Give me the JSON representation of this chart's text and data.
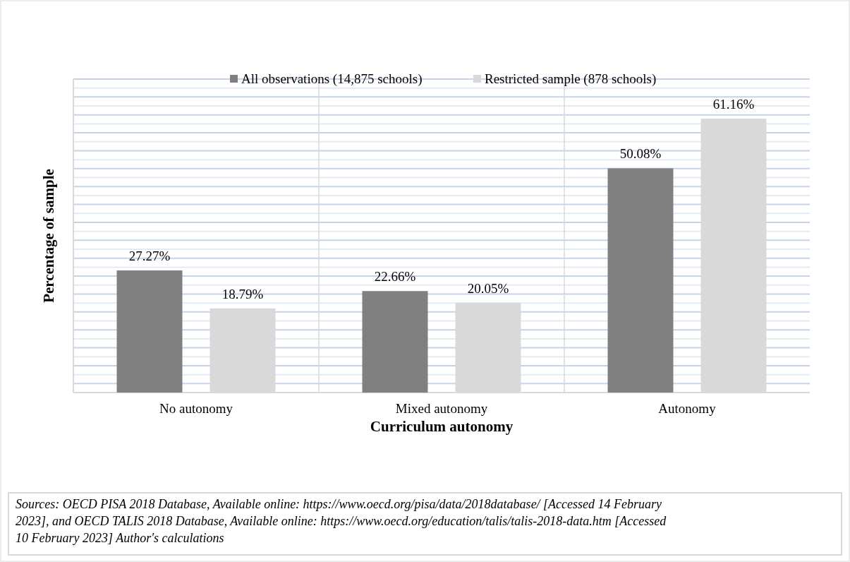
{
  "chart_data": {
    "type": "bar",
    "xlabel": "Curriculum autonomy",
    "ylabel": "Percentage of sample",
    "categories": [
      "No autonomy",
      "Mixed autonomy",
      "Autonomy"
    ],
    "series": [
      {
        "name": "All observations (14,875 schools)",
        "color": "#808080",
        "values": [
          27.27,
          22.66,
          50.08
        ],
        "value_labels": [
          "27.27%",
          "22.66%",
          "50.08%"
        ]
      },
      {
        "name": "Restricted sample (878 schools)",
        "color": "#d9d9d9",
        "values": [
          18.79,
          20.05,
          61.16
        ],
        "value_labels": [
          "18.79%",
          "20.05%",
          "61.16%"
        ]
      }
    ],
    "ylim": [
      0,
      70
    ],
    "yticks": [
      {
        "value": 0,
        "label": null
      },
      {
        "value": 2,
        "label": null
      },
      {
        "value": 4,
        "label": null
      },
      {
        "value": 6,
        "label": null
      },
      {
        "value": 8,
        "label": null
      },
      {
        "value": 10,
        "label": null
      },
      {
        "value": 12,
        "label": null
      },
      {
        "value": 14,
        "label": null
      },
      {
        "value": 16,
        "label": null
      },
      {
        "value": 18,
        "label": null
      },
      {
        "value": 20,
        "label": null
      },
      {
        "value": 22,
        "label": null
      },
      {
        "value": 24,
        "label": null
      },
      {
        "value": 26,
        "label": null
      },
      {
        "value": 28,
        "label": null
      },
      {
        "value": 30,
        "label": null
      },
      {
        "value": 32,
        "label": null
      },
      {
        "value": 34,
        "label": null
      },
      {
        "value": 36,
        "label": null
      },
      {
        "value": 38,
        "label": null
      },
      {
        "value": 40,
        "label": null
      },
      {
        "value": 42,
        "label": null
      },
      {
        "value": 44,
        "label": null
      },
      {
        "value": 46,
        "label": null
      },
      {
        "value": 48,
        "label": null
      },
      {
        "value": 50,
        "label": null
      },
      {
        "value": 52,
        "label": null
      },
      {
        "value": 54,
        "label": null
      },
      {
        "value": 56,
        "label": null
      },
      {
        "value": 58,
        "label": null
      },
      {
        "value": 60,
        "label": null
      },
      {
        "value": 62,
        "label": null
      },
      {
        "value": 64,
        "label": null
      },
      {
        "value": 66,
        "label": null
      },
      {
        "value": 68,
        "label": null
      },
      {
        "value": 70,
        "label": null
      }
    ],
    "grid": true,
    "legend": "top",
    "tick_labels": "x",
    "annotations": [
      "Sources: OECD PISA 2018 Database, Available online: https://www.oecd.org/pisa/data/2018database/  [Accessed 14 February 2023], and OECD TALIS 2018 Database, Available online: https://www.oecd.org/education/talis/talis-2018-data.htm  [Accessed 10 February 2023] Author's calculations"
    ]
  }
}
